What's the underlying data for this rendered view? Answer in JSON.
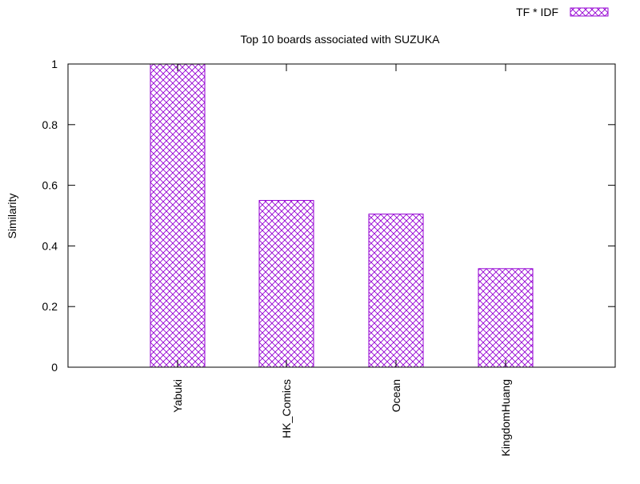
{
  "chart_data": {
    "type": "bar",
    "title": "Top 10 boards associated with SUZUKA",
    "xlabel": "",
    "ylabel": "Similarity",
    "categories": [
      "Yabuki",
      "HK_Comics",
      "Ocean",
      "KingdomHuang"
    ],
    "series": [
      {
        "name": "TF * IDF",
        "values": [
          1.0,
          0.55,
          0.505,
          0.325
        ]
      }
    ],
    "ylim": [
      0,
      1
    ],
    "yticks": [
      "0",
      "0.2",
      "0.4",
      "0.6",
      "0.8",
      "1"
    ],
    "ytick_values": [
      0,
      0.2,
      0.4,
      0.6,
      0.8,
      1
    ],
    "grid": false,
    "legend_position": "top-right",
    "bar_color": "#9400d3",
    "bar_pattern": "crosshatch"
  }
}
